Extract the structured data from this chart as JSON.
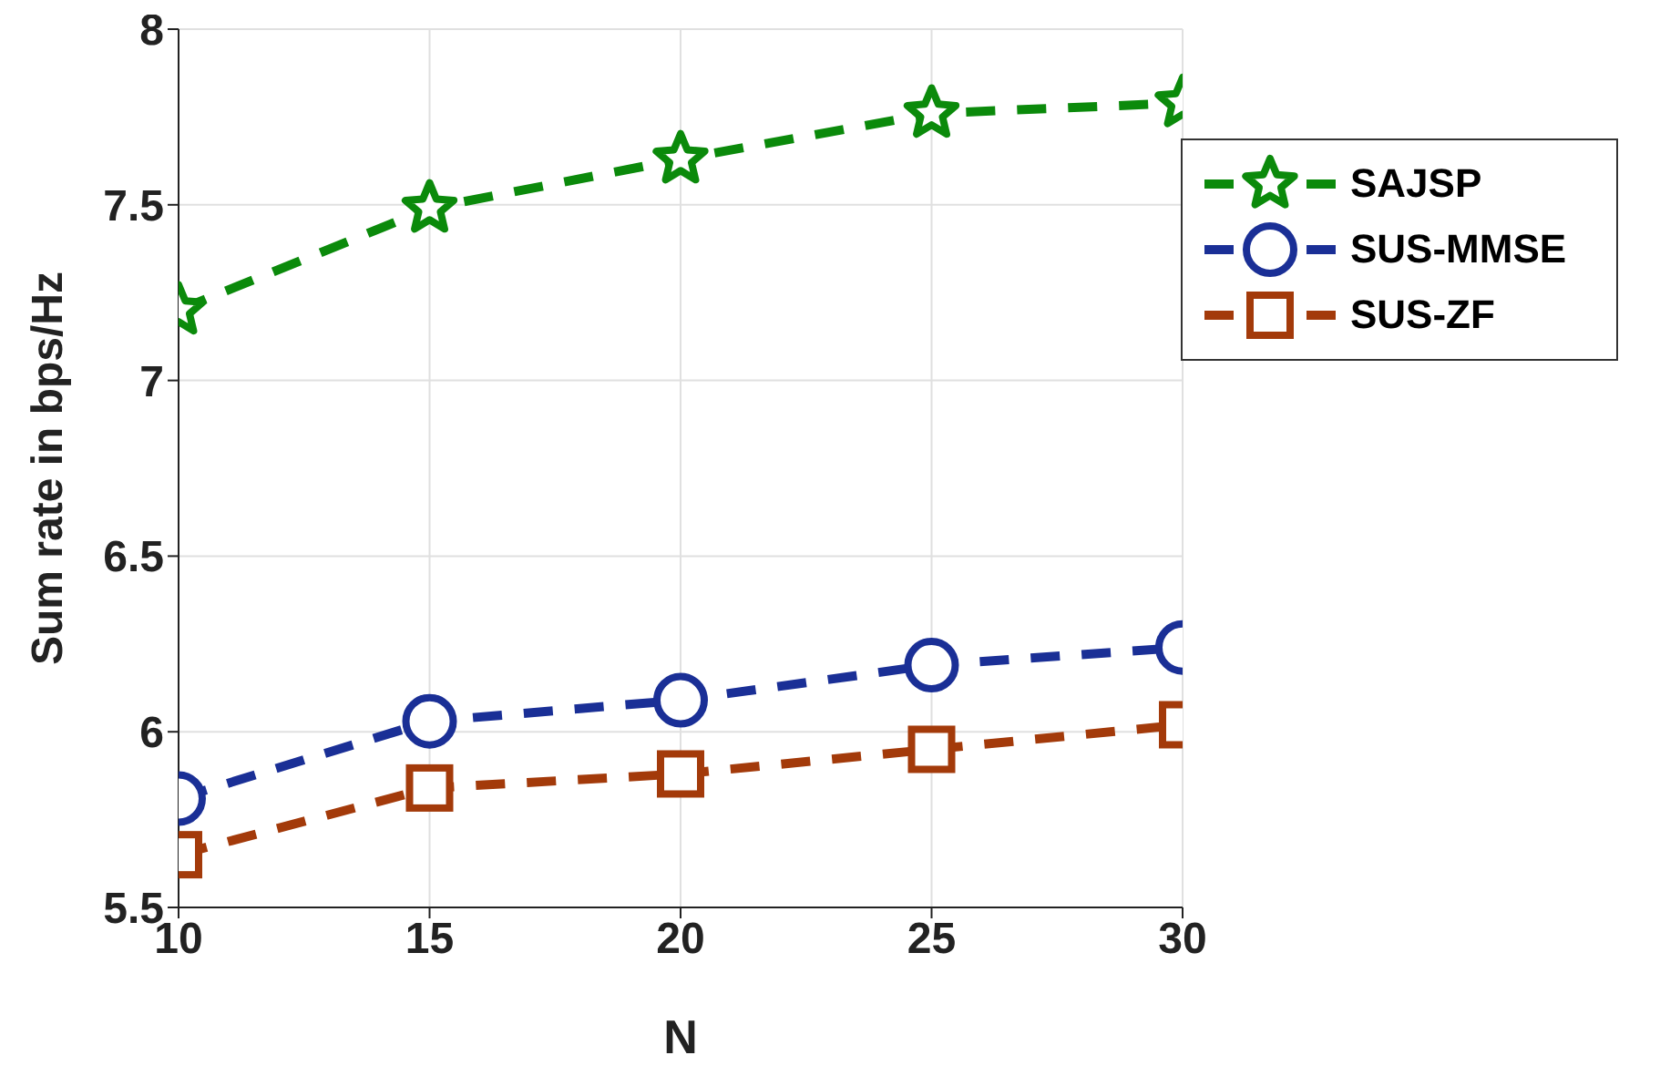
{
  "chart_data": {
    "type": "line",
    "xlabel": "N",
    "ylabel": "Sum rate in bps/Hz",
    "x": [
      10,
      15,
      20,
      25,
      30
    ],
    "series": [
      {
        "name": "SAJSP",
        "color": "#0b8a0b",
        "marker": "star",
        "values": [
          7.2,
          7.49,
          7.63,
          7.76,
          7.79
        ]
      },
      {
        "name": "SUS-MMSE",
        "color": "#1a2f96",
        "marker": "circle",
        "values": [
          5.81,
          6.03,
          6.09,
          6.19,
          6.24
        ]
      },
      {
        "name": "SUS-ZF",
        "color": "#a33a0a",
        "marker": "square",
        "values": [
          5.65,
          5.84,
          5.88,
          5.95,
          6.02
        ]
      }
    ],
    "xlim": [
      10,
      30
    ],
    "xticks": [
      10,
      15,
      20,
      25,
      30
    ],
    "ylim": [
      5.5,
      8
    ],
    "yticks": [
      5.5,
      6,
      6.5,
      7,
      7.5,
      8
    ],
    "grid": true,
    "legend": "top right",
    "line_style": "dashed"
  }
}
